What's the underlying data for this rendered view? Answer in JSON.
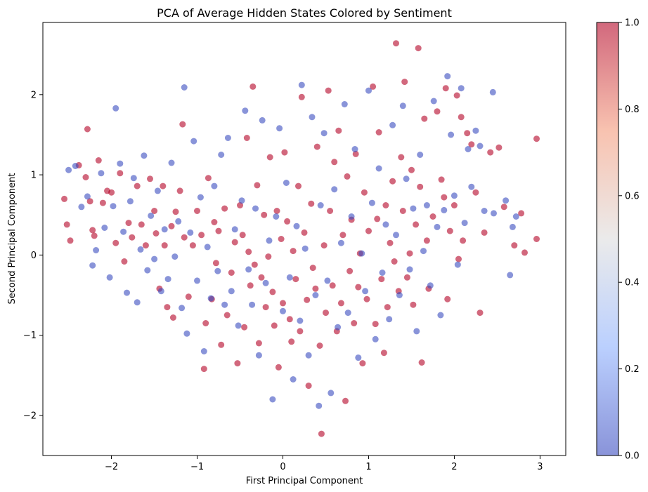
{
  "chart_data": {
    "type": "scatter",
    "title": "PCA of Average Hidden States Colored by Sentiment",
    "xlabel": "First Principal Component",
    "ylabel": "Second Principal Component",
    "xlim": [
      -2.8,
      3.3
    ],
    "ylim": [
      -2.5,
      2.9
    ],
    "xticks": [
      -2,
      -1,
      0,
      1,
      2,
      3
    ],
    "yticks": [
      -2,
      -1,
      0,
      1,
      2
    ],
    "xtick_labels": [
      "−2",
      "−1",
      "0",
      "1",
      "2",
      "3"
    ],
    "ytick_labels": [
      "−2",
      "−1",
      "0",
      "1",
      "2"
    ],
    "grid": false,
    "colormap": "coolwarm",
    "colors": {
      "low": "#3b4cc0",
      "mid": "#dddddd",
      "high": "#b40426"
    },
    "marker_alpha": 0.6,
    "colorbar": {
      "range": [
        0.0,
        1.0
      ],
      "ticks": [
        0.0,
        0.2,
        0.4,
        0.6,
        0.8,
        1.0
      ],
      "tick_labels": [
        "0.0",
        "0.2",
        "0.4",
        "0.6",
        "0.8",
        "1.0"
      ],
      "placement": "right"
    },
    "series": [
      {
        "name": "",
        "class_value": 1,
        "points": [
          [
            -2.55,
            0.7
          ],
          [
            -2.52,
            0.38
          ],
          [
            -2.48,
            0.18
          ],
          [
            -2.38,
            1.12
          ],
          [
            -2.3,
            0.97
          ],
          [
            -2.28,
            1.57
          ],
          [
            -2.25,
            0.67
          ],
          [
            -2.22,
            0.31
          ],
          [
            -2.2,
            0.24
          ],
          [
            -2.15,
            1.18
          ],
          [
            -2.1,
            0.65
          ],
          [
            -2.05,
            0.8
          ],
          [
            -2.0,
            0.78
          ],
          [
            -1.95,
            0.15
          ],
          [
            -1.9,
            1.02
          ],
          [
            -1.85,
            -0.08
          ],
          [
            -1.8,
            0.4
          ],
          [
            -1.76,
            0.22
          ],
          [
            -1.7,
            0.86
          ],
          [
            -1.65,
            0.38
          ],
          [
            -1.6,
            0.12
          ],
          [
            -1.55,
            0.95
          ],
          [
            -1.5,
            0.55
          ],
          [
            -1.48,
            0.27
          ],
          [
            -1.44,
            -0.42
          ],
          [
            -1.4,
            0.86
          ],
          [
            -1.38,
            0.12
          ],
          [
            -1.35,
            -0.65
          ],
          [
            -1.3,
            0.36
          ],
          [
            -1.28,
            -0.78
          ],
          [
            -1.25,
            0.54
          ],
          [
            -1.2,
            0.8
          ],
          [
            -1.17,
            1.63
          ],
          [
            -1.15,
            0.22
          ],
          [
            -1.1,
            -0.52
          ],
          [
            -1.05,
            0.12
          ],
          [
            -1.0,
            0.55
          ],
          [
            -0.95,
            0.25
          ],
          [
            -0.92,
            -1.42
          ],
          [
            -0.9,
            -0.85
          ],
          [
            -0.87,
            0.96
          ],
          [
            -0.83,
            -0.55
          ],
          [
            -0.8,
            0.41
          ],
          [
            -0.78,
            -0.1
          ],
          [
            -0.75,
            0.3
          ],
          [
            -0.72,
            -1.12
          ],
          [
            -0.68,
            0.58
          ],
          [
            -0.65,
            -0.75
          ],
          [
            -0.6,
            -0.22
          ],
          [
            -0.56,
            0.16
          ],
          [
            -0.53,
            -1.35
          ],
          [
            -0.5,
            0.62
          ],
          [
            -0.47,
            0.25
          ],
          [
            -0.45,
            -0.9
          ],
          [
            -0.42,
            1.46
          ],
          [
            -0.4,
            0.04
          ],
          [
            -0.38,
            -0.38
          ],
          [
            -0.35,
            2.1
          ],
          [
            -0.33,
            -0.12
          ],
          [
            -0.3,
            0.87
          ],
          [
            -0.28,
            -1.1
          ],
          [
            -0.25,
            -0.28
          ],
          [
            -0.22,
            0.5
          ],
          [
            -0.2,
            -0.65
          ],
          [
            -0.17,
            -0.02
          ],
          [
            -0.15,
            1.22
          ],
          [
            -0.12,
            -0.46
          ],
          [
            -0.1,
            -0.88
          ],
          [
            -0.07,
            0.55
          ],
          [
            -0.05,
            -1.4
          ],
          [
            -0.02,
            0.2
          ],
          [
            0.0,
            -0.6
          ],
          [
            0.02,
            1.28
          ],
          [
            0.05,
            0.42
          ],
          [
            0.08,
            -0.8
          ],
          [
            0.1,
            -1.08
          ],
          [
            0.12,
            0.05
          ],
          [
            0.15,
            -0.3
          ],
          [
            0.18,
            0.86
          ],
          [
            0.2,
            -0.95
          ],
          [
            0.22,
            1.97
          ],
          [
            0.25,
            0.28
          ],
          [
            0.28,
            -0.56
          ],
          [
            0.3,
            -1.63
          ],
          [
            0.33,
            0.64
          ],
          [
            0.35,
            -0.16
          ],
          [
            0.38,
            -0.42
          ],
          [
            0.4,
            1.35
          ],
          [
            0.43,
            -1.13
          ],
          [
            0.45,
            -2.23
          ],
          [
            0.48,
            0.12
          ],
          [
            0.5,
            -0.72
          ],
          [
            0.53,
            2.05
          ],
          [
            0.55,
            0.55
          ],
          [
            0.58,
            -0.38
          ],
          [
            0.6,
            1.16
          ],
          [
            0.63,
            -0.95
          ],
          [
            0.65,
            1.55
          ],
          [
            0.68,
            -0.6
          ],
          [
            0.7,
            0.25
          ],
          [
            0.73,
            -1.82
          ],
          [
            0.75,
            0.98
          ],
          [
            0.78,
            -0.2
          ],
          [
            0.8,
            0.44
          ],
          [
            0.83,
            -0.85
          ],
          [
            0.85,
            1.26
          ],
          [
            0.88,
            -0.4
          ],
          [
            0.9,
            0.02
          ],
          [
            0.93,
            -1.35
          ],
          [
            0.95,
            0.78
          ],
          [
            0.98,
            -0.55
          ],
          [
            1.0,
            0.3
          ],
          [
            1.05,
            2.1
          ],
          [
            1.08,
            -0.86
          ],
          [
            1.1,
            0.45
          ],
          [
            1.12,
            1.53
          ],
          [
            1.15,
            -0.3
          ],
          [
            1.18,
            -1.22
          ],
          [
            1.2,
            0.62
          ],
          [
            1.22,
            -0.65
          ],
          [
            1.25,
            0.15
          ],
          [
            1.28,
            0.92
          ],
          [
            1.3,
            -0.08
          ],
          [
            1.32,
            2.64
          ],
          [
            1.35,
            -0.45
          ],
          [
            1.38,
            1.22
          ],
          [
            1.4,
            0.55
          ],
          [
            1.42,
            2.16
          ],
          [
            1.45,
            -0.28
          ],
          [
            1.48,
            0.02
          ],
          [
            1.5,
            1.06
          ],
          [
            1.52,
            -0.62
          ],
          [
            1.55,
            0.38
          ],
          [
            1.58,
            2.58
          ],
          [
            1.6,
            0.85
          ],
          [
            1.62,
            -1.34
          ],
          [
            1.65,
            1.7
          ],
          [
            1.68,
            0.18
          ],
          [
            1.7,
            -0.42
          ],
          [
            1.75,
            0.48
          ],
          [
            1.8,
            1.79
          ],
          [
            1.85,
            0.94
          ],
          [
            1.88,
            0.72
          ],
          [
            1.9,
            2.08
          ],
          [
            1.92,
            -0.55
          ],
          [
            1.95,
            0.3
          ],
          [
            2.0,
            0.62
          ],
          [
            2.03,
            1.99
          ],
          [
            2.05,
            -0.05
          ],
          [
            2.08,
            1.72
          ],
          [
            2.1,
            0.18
          ],
          [
            2.15,
            1.52
          ],
          [
            2.2,
            1.38
          ],
          [
            2.25,
            0.78
          ],
          [
            2.3,
            -0.72
          ],
          [
            2.35,
            0.28
          ],
          [
            2.42,
            1.28
          ],
          [
            2.52,
            1.34
          ],
          [
            2.58,
            0.6
          ],
          [
            2.7,
            0.12
          ],
          [
            2.78,
            0.52
          ],
          [
            2.82,
            0.03
          ],
          [
            2.96,
            1.45
          ],
          [
            2.96,
            0.2
          ]
        ]
      },
      {
        "name": "",
        "class_value": 0,
        "points": [
          [
            -2.5,
            1.06
          ],
          [
            -2.42,
            1.11
          ],
          [
            -2.35,
            0.6
          ],
          [
            -2.28,
            0.73
          ],
          [
            -2.22,
            -0.13
          ],
          [
            -2.18,
            0.06
          ],
          [
            -2.12,
            1.02
          ],
          [
            -2.08,
            0.34
          ],
          [
            -2.02,
            -0.28
          ],
          [
            -1.98,
            0.61
          ],
          [
            -1.95,
            1.83
          ],
          [
            -1.9,
            1.14
          ],
          [
            -1.86,
            0.29
          ],
          [
            -1.82,
            -0.47
          ],
          [
            -1.78,
            0.67
          ],
          [
            -1.74,
            0.96
          ],
          [
            -1.7,
            -0.59
          ],
          [
            -1.66,
            0.07
          ],
          [
            -1.62,
            1.24
          ],
          [
            -1.58,
            -0.19
          ],
          [
            -1.54,
            0.49
          ],
          [
            -1.5,
            -0.05
          ],
          [
            -1.46,
            0.8
          ],
          [
            -1.42,
            -0.45
          ],
          [
            -1.38,
            0.32
          ],
          [
            -1.34,
            -0.3
          ],
          [
            -1.3,
            1.15
          ],
          [
            -1.26,
            -0.02
          ],
          [
            -1.22,
            0.42
          ],
          [
            -1.18,
            -0.66
          ],
          [
            -1.15,
            2.09
          ],
          [
            -1.12,
            -0.98
          ],
          [
            -1.08,
            0.28
          ],
          [
            -1.04,
            1.42
          ],
          [
            -1.0,
            -0.32
          ],
          [
            -0.96,
            0.72
          ],
          [
            -0.92,
            -1.2
          ],
          [
            -0.88,
            0.1
          ],
          [
            -0.84,
            -0.54
          ],
          [
            -0.8,
            0.86
          ],
          [
            -0.76,
            -0.2
          ],
          [
            -0.72,
            1.25
          ],
          [
            -0.68,
            -0.62
          ],
          [
            -0.64,
            1.46
          ],
          [
            -0.6,
            -0.45
          ],
          [
            -0.56,
            0.32
          ],
          [
            -0.52,
            -0.88
          ],
          [
            -0.48,
            0.68
          ],
          [
            -0.44,
            1.8
          ],
          [
            -0.4,
            -0.18
          ],
          [
            -0.36,
            -0.62
          ],
          [
            -0.32,
            0.58
          ],
          [
            -0.28,
            -1.25
          ],
          [
            -0.24,
            1.68
          ],
          [
            -0.2,
            -0.35
          ],
          [
            -0.16,
            0.18
          ],
          [
            -0.12,
            -1.8
          ],
          [
            -0.08,
            0.48
          ],
          [
            -0.04,
            1.58
          ],
          [
            0.0,
            -0.7
          ],
          [
            0.04,
            0.9
          ],
          [
            0.08,
            -0.28
          ],
          [
            0.12,
            -1.55
          ],
          [
            0.16,
            0.36
          ],
          [
            0.2,
            -0.82
          ],
          [
            0.22,
            2.12
          ],
          [
            0.26,
            0.08
          ],
          [
            0.3,
            -1.25
          ],
          [
            0.34,
            1.72
          ],
          [
            0.38,
            -0.5
          ],
          [
            0.42,
            -1.88
          ],
          [
            0.44,
            0.62
          ],
          [
            0.48,
            1.52
          ],
          [
            0.52,
            -0.32
          ],
          [
            0.56,
            -1.72
          ],
          [
            0.6,
            0.82
          ],
          [
            0.64,
            -0.9
          ],
          [
            0.68,
            0.15
          ],
          [
            0.72,
            1.88
          ],
          [
            0.76,
            -0.72
          ],
          [
            0.8,
            0.48
          ],
          [
            0.84,
            1.32
          ],
          [
            0.88,
            -1.28
          ],
          [
            0.92,
            0.02
          ],
          [
            0.96,
            -0.45
          ],
          [
            1.0,
            2.05
          ],
          [
            1.04,
            0.65
          ],
          [
            1.08,
            -1.05
          ],
          [
            1.12,
            1.08
          ],
          [
            1.16,
            -0.22
          ],
          [
            1.2,
            0.38
          ],
          [
            1.24,
            -0.8
          ],
          [
            1.28,
            1.62
          ],
          [
            1.32,
            0.25
          ],
          [
            1.36,
            -0.5
          ],
          [
            1.4,
            1.86
          ],
          [
            1.44,
            0.95
          ],
          [
            1.48,
            -0.18
          ],
          [
            1.52,
            0.58
          ],
          [
            1.56,
            -0.95
          ],
          [
            1.6,
            1.25
          ],
          [
            1.64,
            0.05
          ],
          [
            1.68,
            0.62
          ],
          [
            1.72,
            -0.38
          ],
          [
            1.76,
            1.92
          ],
          [
            1.8,
            0.35
          ],
          [
            1.84,
            -0.75
          ],
          [
            1.88,
            0.56
          ],
          [
            1.92,
            2.23
          ],
          [
            1.96,
            1.5
          ],
          [
            2.0,
            0.74
          ],
          [
            2.04,
            -0.12
          ],
          [
            2.08,
            2.08
          ],
          [
            2.12,
            0.4
          ],
          [
            2.16,
            1.32
          ],
          [
            2.2,
            0.85
          ],
          [
            2.25,
            1.55
          ],
          [
            2.3,
            1.36
          ],
          [
            2.35,
            0.55
          ],
          [
            2.45,
            2.03
          ],
          [
            2.46,
            0.52
          ],
          [
            2.6,
            0.68
          ],
          [
            2.65,
            -0.25
          ],
          [
            2.68,
            0.35
          ],
          [
            2.72,
            0.48
          ]
        ]
      }
    ]
  }
}
